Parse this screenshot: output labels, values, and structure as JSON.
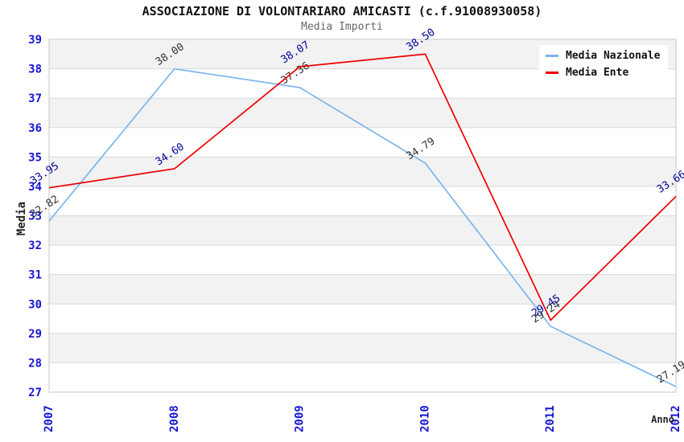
{
  "chart_data": {
    "type": "line",
    "title": "ASSOCIAZIONE DI VOLONTARIARO AMICASTI (c.f.91008930058)",
    "subtitle": "Media Importi",
    "xlabel": "Anno",
    "ylabel": "Media",
    "categories": [
      "2007",
      "2008",
      "2009",
      "2010",
      "2011",
      "2012"
    ],
    "series": [
      {
        "name": "Media Nazionale",
        "color": "#7cb5ec",
        "label_color": "#333333",
        "values": [
          32.82,
          38.0,
          37.36,
          34.79,
          29.24,
          27.19
        ]
      },
      {
        "name": "Media Ente",
        "color": "#ee0000",
        "label_color": "#000099",
        "values": [
          33.95,
          34.6,
          38.07,
          38.5,
          29.45,
          33.66
        ]
      }
    ],
    "ylim": [
      27,
      39
    ],
    "y_tick_interval": 1,
    "grid": "horizontal-alternating-bands",
    "legend_position": "top-right",
    "data_label_decimals": 2
  },
  "colors": {
    "axis_tick_text": "#1717d4",
    "band_gray": "#f2f2f2",
    "band_white": "#ffffff",
    "gridline": "#d9d9d9",
    "plot_border": "#c6c6c6",
    "title_text": "#111111",
    "subtitle_text": "#666666",
    "legend_background": "#ffffff"
  }
}
